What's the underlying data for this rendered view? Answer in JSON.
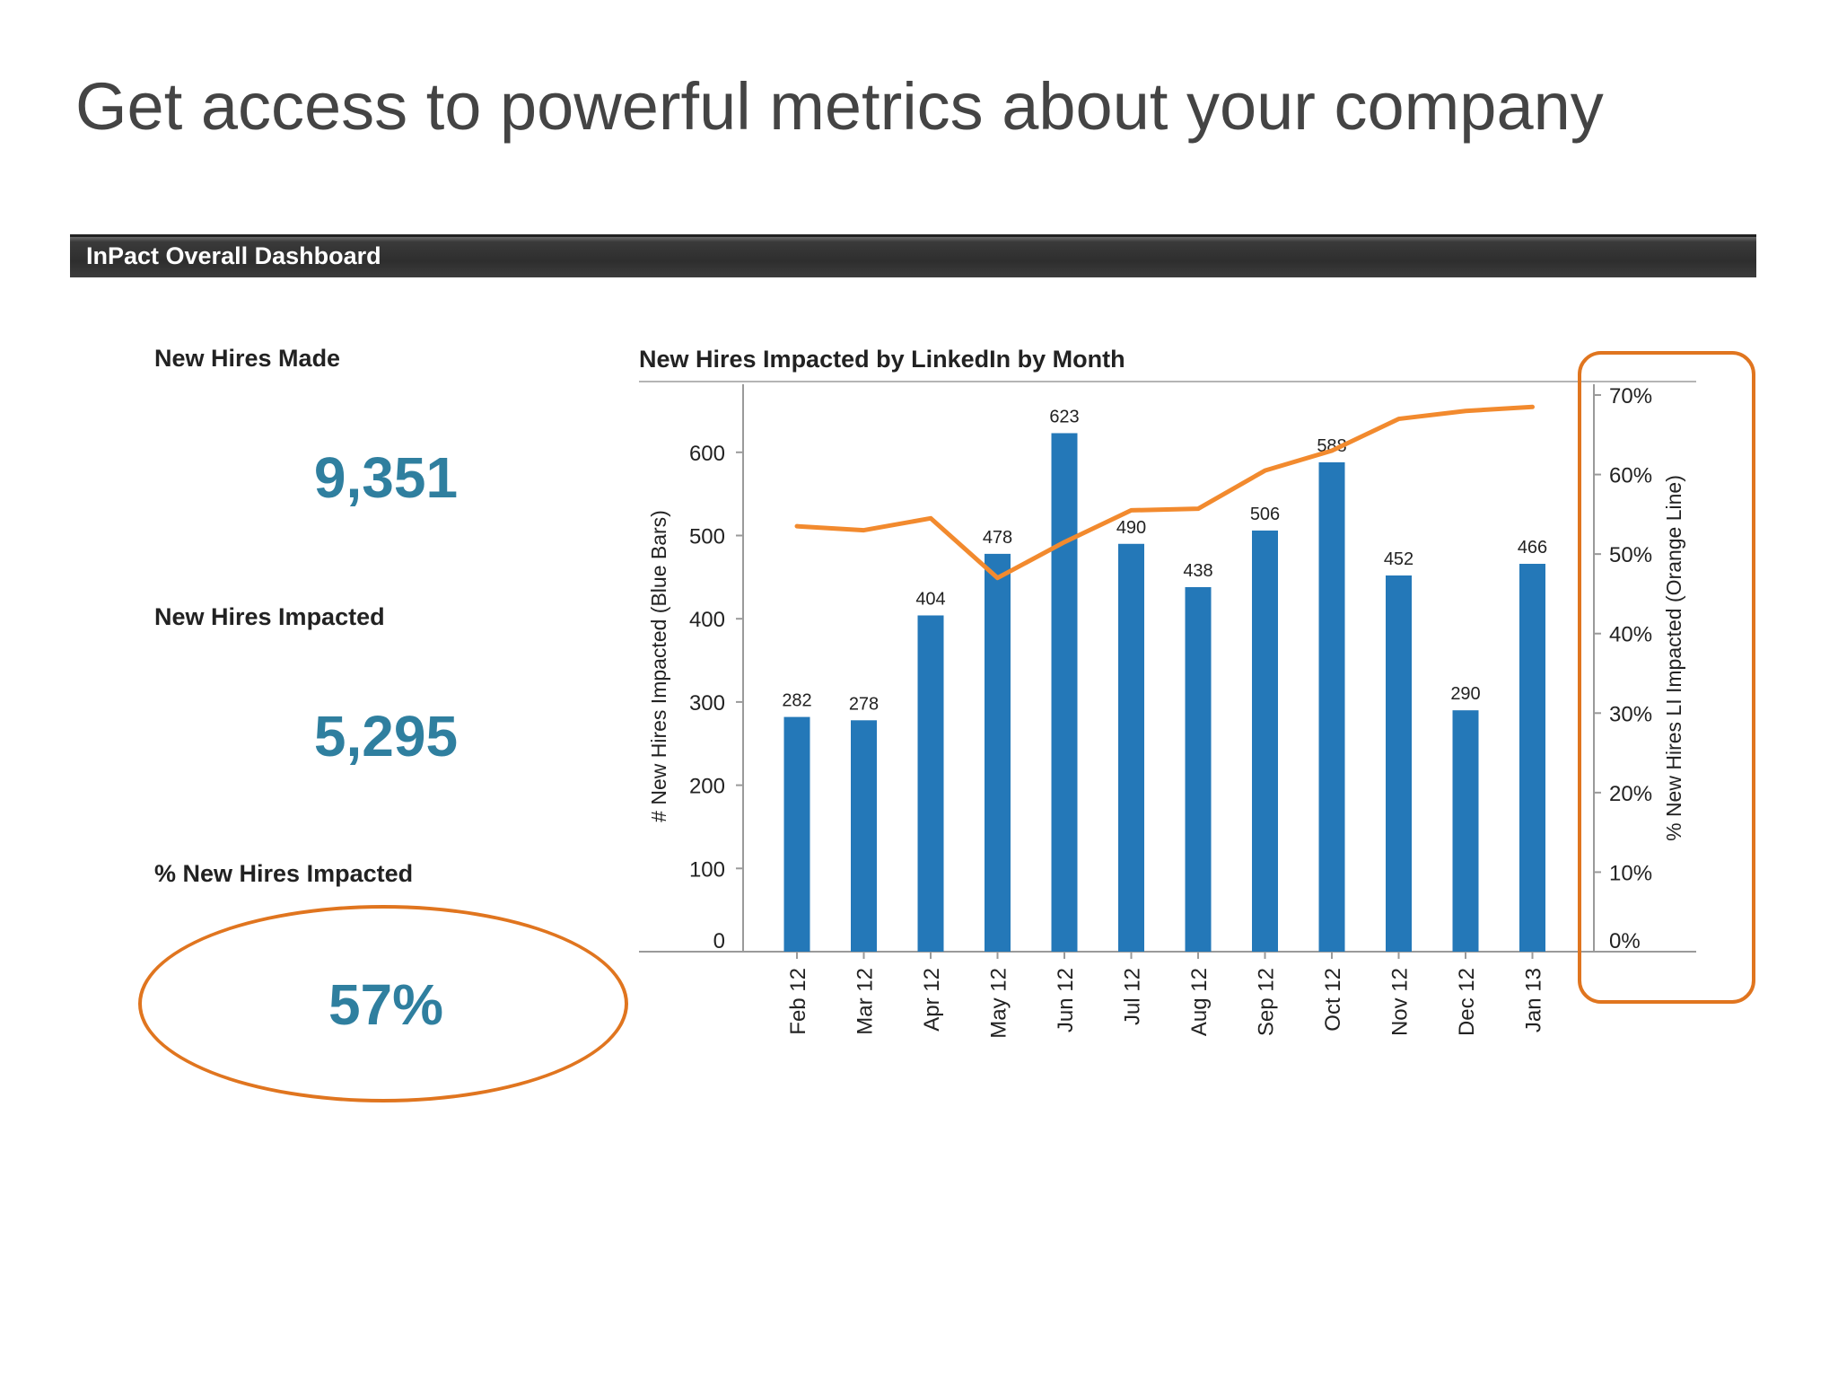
{
  "slide": {
    "title": "Get access to powerful metrics about your company"
  },
  "dashboard": {
    "header": "InPact Overall Dashboard",
    "kpis": [
      {
        "label": "New Hires Made",
        "value": "9,351"
      },
      {
        "label": "New Hires Impacted",
        "value": "5,295"
      },
      {
        "label": "% New Hires Impacted",
        "value": "57%"
      }
    ]
  },
  "colors": {
    "bar": "#2478b8",
    "line": "#f28a2e",
    "highlight": "#e0751f",
    "kpi_value": "#2f7f9f"
  },
  "chart_data": {
    "type": "bar",
    "title": "New Hires Impacted by LinkedIn by Month",
    "categories": [
      "Feb 12",
      "Mar 12",
      "Apr 12",
      "May 12",
      "Jun 12",
      "Jul 12",
      "Aug 12",
      "Sep 12",
      "Oct 12",
      "Nov 12",
      "Dec 12",
      "Jan 13"
    ],
    "series": [
      {
        "type": "bar",
        "axis": "left",
        "values": [
          282,
          278,
          404,
          478,
          623,
          490,
          438,
          506,
          588,
          452,
          290,
          466
        ]
      },
      {
        "type": "line",
        "axis": "right",
        "values": [
          53.5,
          53,
          54.5,
          47,
          51.5,
          55.5,
          55.7,
          60.5,
          63,
          67,
          68,
          68.5
        ]
      }
    ],
    "ylabel": "# New Hires Impacted (Blue Bars)",
    "ylabel_right": "% New Hires LI Impacted (Orange Line)",
    "ylim": [
      0,
      685
    ],
    "yticks": [
      "0",
      "100",
      "200",
      "300",
      "400",
      "500",
      "600"
    ],
    "ylim_right": [
      0,
      70
    ],
    "yticks_right": [
      "0%",
      "10%",
      "20%",
      "30%",
      "40%",
      "50%",
      "60%",
      "70%"
    ],
    "grid": false,
    "legend": "none"
  }
}
